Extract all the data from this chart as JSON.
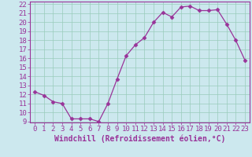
{
  "x": [
    0,
    1,
    2,
    3,
    4,
    5,
    6,
    7,
    8,
    9,
    10,
    11,
    12,
    13,
    14,
    15,
    16,
    17,
    18,
    19,
    20,
    21,
    22,
    23
  ],
  "y": [
    12.3,
    11.9,
    11.2,
    11.0,
    9.3,
    9.3,
    9.3,
    9.0,
    11.0,
    13.7,
    16.3,
    17.5,
    18.3,
    20.0,
    21.1,
    20.6,
    21.7,
    21.8,
    21.3,
    21.3,
    21.4,
    19.8,
    18.0,
    15.8
  ],
  "line_color": "#993399",
  "marker": "D",
  "marker_size": 2.5,
  "bg_color": "#cce8ee",
  "grid_color": "#99ccbb",
  "xlabel": "Windchill (Refroidissement éolien,°C)",
  "xlabel_color": "#993399",
  "ylim": [
    9,
    22
  ],
  "xlim": [
    -0.5,
    23.5
  ],
  "yticks": [
    9,
    10,
    11,
    12,
    13,
    14,
    15,
    16,
    17,
    18,
    19,
    20,
    21,
    22
  ],
  "xticks": [
    0,
    1,
    2,
    3,
    4,
    5,
    6,
    7,
    8,
    9,
    10,
    11,
    12,
    13,
    14,
    15,
    16,
    17,
    18,
    19,
    20,
    21,
    22,
    23
  ],
  "tick_color": "#993399",
  "spine_color": "#993399",
  "font_size": 6.5,
  "label_font_size": 7
}
